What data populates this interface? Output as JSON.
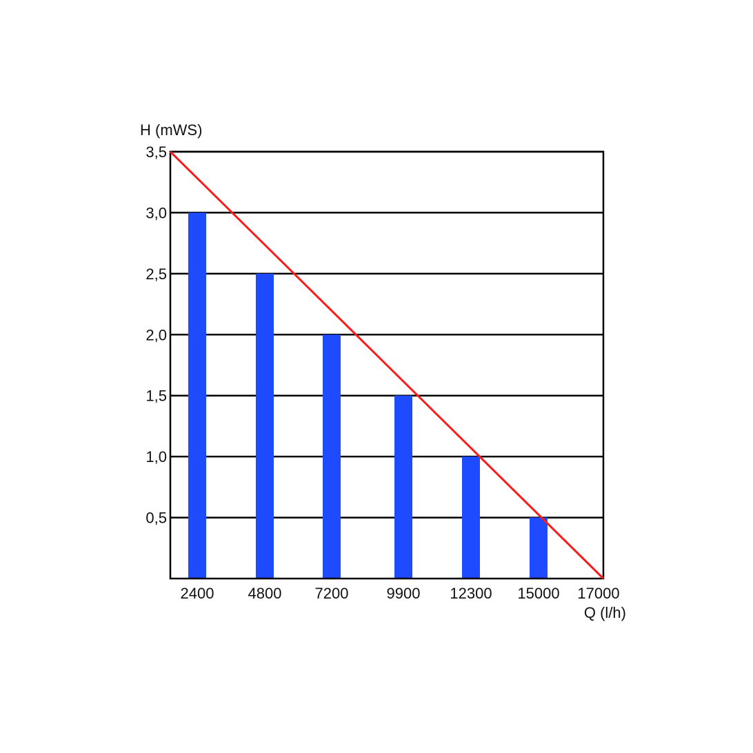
{
  "chart_data": {
    "type": "bar",
    "ylabel": "H (mWS)",
    "xlabel": "Q (l/h)",
    "categories": [
      "2400",
      "4800",
      "7200",
      "9900",
      "12300",
      "15000"
    ],
    "values": [
      3.0,
      2.5,
      2.0,
      1.5,
      1.0,
      0.5
    ],
    "x_ticks": [
      "2400",
      "4800",
      "7200",
      "9900",
      "12300",
      "15000",
      "17000"
    ],
    "y_ticks": [
      "0,5",
      "1,0",
      "1,5",
      "2,0",
      "2,5",
      "3,0",
      "3,5"
    ],
    "y_tick_values": [
      0.5,
      1.0,
      1.5,
      2.0,
      2.5,
      3.0,
      3.5
    ],
    "ylim": [
      0,
      3.5
    ],
    "grid": true,
    "line": {
      "from": [
        0,
        3.5
      ],
      "to": [
        17000,
        0
      ]
    },
    "colors": {
      "bar": "#1e4bff",
      "line": "#ff1a1a",
      "grid": "#000000"
    }
  }
}
